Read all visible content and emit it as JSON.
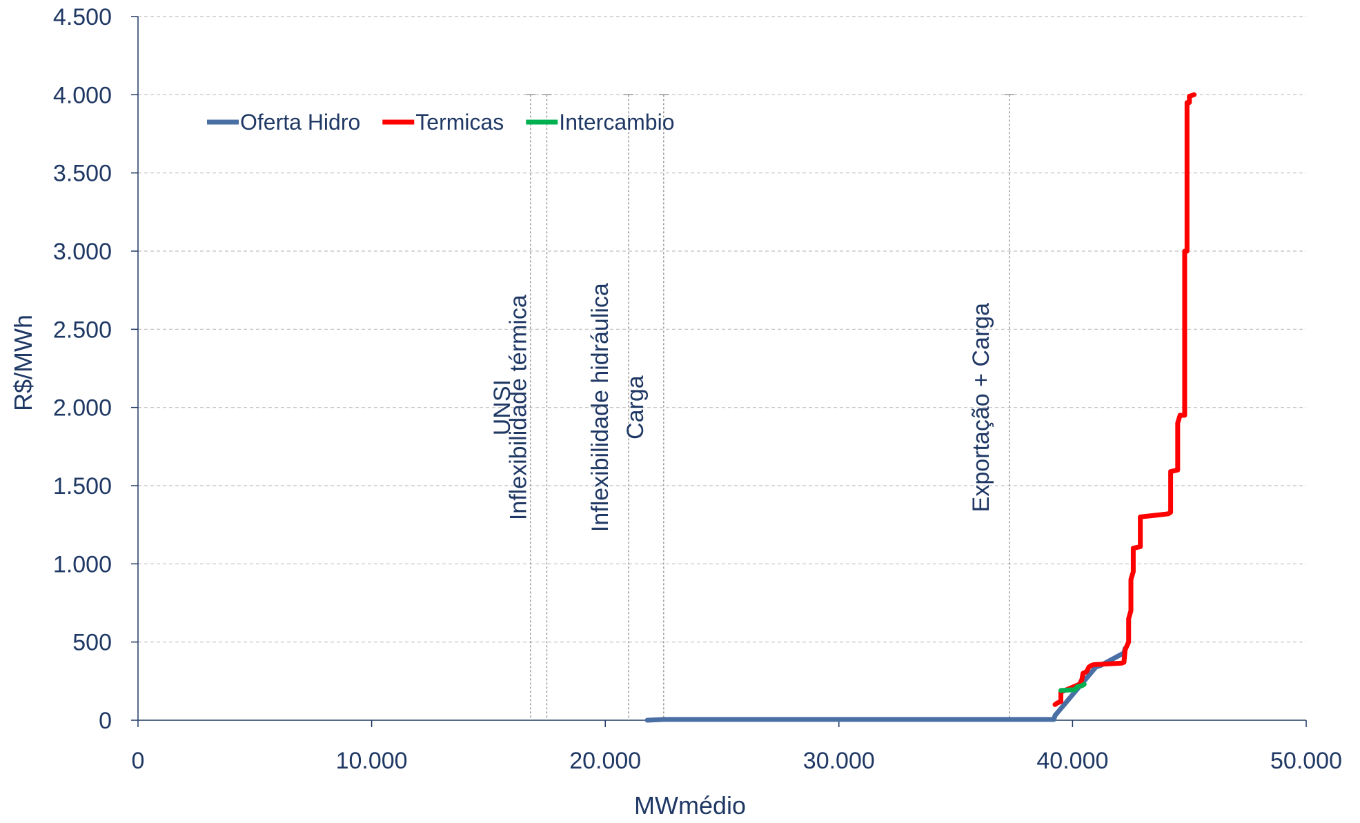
{
  "chart_data": {
    "type": "line",
    "xlabel": "MWmédio",
    "ylabel": "R$/MWh",
    "xlim": [
      0,
      50000
    ],
    "ylim": [
      0,
      4500
    ],
    "x_ticks": [
      0,
      10000,
      20000,
      30000,
      40000,
      50000
    ],
    "x_tick_labels": [
      "0",
      "10.000",
      "20.000",
      "30.000",
      "40.000",
      "50.000"
    ],
    "y_ticks": [
      0,
      500,
      1000,
      1500,
      2000,
      2500,
      3000,
      3500,
      4000,
      4500
    ],
    "y_tick_labels": [
      "0",
      "500",
      "1.000",
      "1.500",
      "2.000",
      "2.500",
      "3.000",
      "3.500",
      "4.000",
      "4.500"
    ],
    "grid": "horizontal dashed",
    "legend_position": "top-left",
    "series": [
      {
        "name": "Oferta Hidro",
        "color": "#4A6FA5",
        "points": [
          [
            21800,
            0
          ],
          [
            22500,
            5
          ],
          [
            39200,
            5
          ],
          [
            39250,
            30
          ],
          [
            41000,
            340
          ],
          [
            41200,
            350
          ],
          [
            42200,
            430
          ],
          [
            42250,
            460
          ]
        ]
      },
      {
        "name": "Termicas",
        "color": "#FF0000",
        "points": [
          [
            39250,
            100
          ],
          [
            39350,
            110
          ],
          [
            39500,
            120
          ],
          [
            39500,
            180
          ],
          [
            40300,
            230
          ],
          [
            40400,
            260
          ],
          [
            40450,
            300
          ],
          [
            40600,
            310
          ],
          [
            40700,
            340
          ],
          [
            40800,
            350
          ],
          [
            40900,
            355
          ],
          [
            41500,
            360
          ],
          [
            42100,
            365
          ],
          [
            42200,
            370
          ],
          [
            42250,
            450
          ],
          [
            42400,
            500
          ],
          [
            42400,
            650
          ],
          [
            42500,
            700
          ],
          [
            42500,
            900
          ],
          [
            42600,
            950
          ],
          [
            42600,
            1100
          ],
          [
            42900,
            1110
          ],
          [
            42900,
            1300
          ],
          [
            43500,
            1310
          ],
          [
            44100,
            1320
          ],
          [
            44200,
            1330
          ],
          [
            44200,
            1590
          ],
          [
            44500,
            1600
          ],
          [
            44500,
            1900
          ],
          [
            44600,
            1950
          ],
          [
            44800,
            1950
          ],
          [
            44800,
            3000
          ],
          [
            44900,
            3000
          ],
          [
            44900,
            3950
          ],
          [
            45000,
            3950
          ],
          [
            45000,
            3990
          ],
          [
            45200,
            4000
          ]
        ]
      },
      {
        "name": "Intercambio",
        "color": "#00B050",
        "points": [
          [
            39500,
            190
          ],
          [
            40100,
            195
          ],
          [
            40200,
            215
          ],
          [
            40400,
            220
          ],
          [
            40500,
            230
          ]
        ]
      }
    ],
    "vertical_lines": [
      {
        "label": "UNSI",
        "x": 16800
      },
      {
        "label": "Inflexibilidade térmica",
        "x": 17500
      },
      {
        "label": "Inflexibilidade hidráulica",
        "x": 21000
      },
      {
        "label": "Carga",
        "x": 22500
      },
      {
        "label": "Exportação + Carga",
        "x": 37300
      }
    ]
  }
}
